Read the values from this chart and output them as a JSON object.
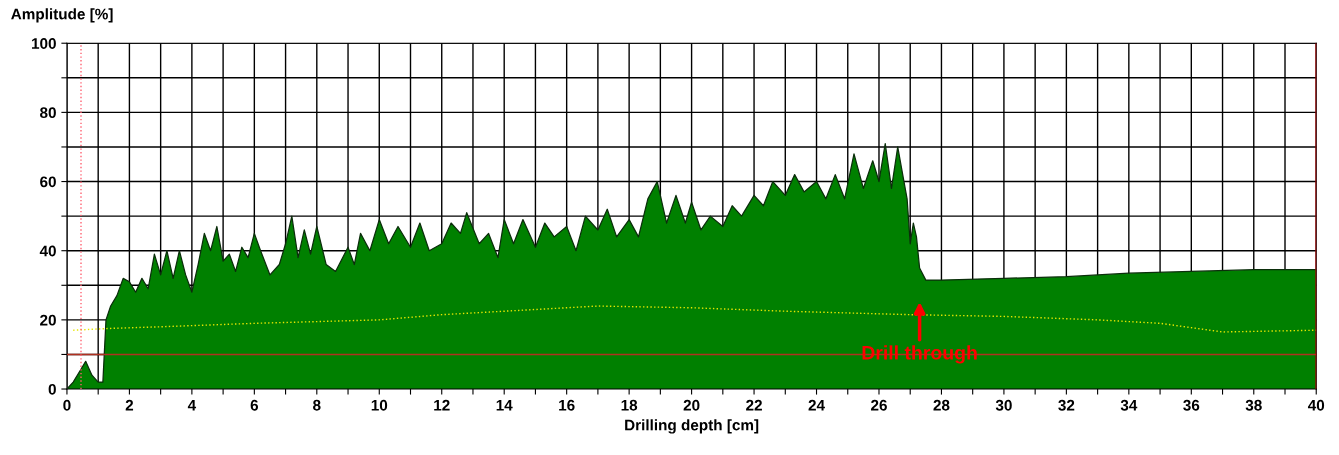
{
  "chart_data": {
    "type": "area",
    "ylabel": "Amplitude [%]",
    "xlabel": "Drilling depth [cm]",
    "xlim": [
      0,
      40
    ],
    "ylim": [
      0,
      100
    ],
    "xticks": [
      0,
      {
        "value": 1,
        "label": null
      },
      2,
      {
        "value": 3,
        "label": null
      },
      4,
      {
        "value": 5,
        "label": null
      },
      6,
      {
        "value": 7,
        "label": null
      },
      8,
      {
        "value": 9,
        "label": null
      },
      10,
      {
        "value": 11,
        "label": null
      },
      12,
      {
        "value": 13,
        "label": null
      },
      14,
      {
        "value": 15,
        "label": null
      },
      16,
      {
        "value": 17,
        "label": null
      },
      18,
      {
        "value": 19,
        "label": null
      },
      20,
      {
        "value": 21,
        "label": null
      },
      22,
      {
        "value": 23,
        "label": null
      },
      24,
      {
        "value": 25,
        "label": null
      },
      26,
      {
        "value": 27,
        "label": null
      },
      28,
      {
        "value": 29,
        "label": null
      },
      30,
      {
        "value": 31,
        "label": null
      },
      32,
      {
        "value": 33,
        "label": null
      },
      34,
      {
        "value": 35,
        "label": null
      },
      36,
      {
        "value": 37,
        "label": null
      },
      38,
      {
        "value": 39,
        "label": null
      },
      40
    ],
    "yticks": [
      0,
      {
        "value": 10,
        "label": null
      },
      20,
      {
        "value": 30,
        "label": null
      },
      40,
      {
        "value": 50,
        "label": null
      },
      60,
      {
        "value": 70,
        "label": null
      },
      80,
      {
        "value": 90,
        "label": null
      },
      100
    ],
    "grid": true,
    "legend": false,
    "series": [
      {
        "color": "#008000",
        "x": [
          0,
          0.2,
          0.4,
          0.6,
          0.8,
          1.0,
          1.15,
          1.25,
          1.4,
          1.6,
          1.8,
          2.0,
          2.2,
          2.4,
          2.6,
          2.8,
          3.0,
          3.2,
          3.4,
          3.6,
          3.8,
          4.0,
          4.2,
          4.4,
          4.6,
          4.8,
          5.0,
          5.2,
          5.4,
          5.6,
          5.8,
          6.0,
          6.2,
          6.5,
          6.8,
          7.0,
          7.2,
          7.4,
          7.6,
          7.8,
          8.0,
          8.3,
          8.6,
          9.0,
          9.2,
          9.4,
          9.7,
          10.0,
          10.3,
          10.6,
          11.0,
          11.3,
          11.6,
          12.0,
          12.3,
          12.6,
          12.8,
          13.2,
          13.5,
          13.8,
          14.0,
          14.3,
          14.6,
          15.0,
          15.3,
          15.6,
          16.0,
          16.3,
          16.6,
          17.0,
          17.3,
          17.6,
          18.0,
          18.3,
          18.6,
          18.9,
          19.2,
          19.5,
          19.8,
          20.0,
          20.3,
          20.6,
          21.0,
          21.3,
          21.6,
          22.0,
          22.3,
          22.6,
          23.0,
          23.3,
          23.6,
          24.0,
          24.3,
          24.6,
          24.9,
          25.2,
          25.5,
          25.8,
          26.0,
          26.2,
          26.4,
          26.6,
          26.8,
          26.9,
          27.0,
          27.1,
          27.2,
          27.3,
          27.5,
          28,
          30,
          32,
          34,
          36,
          38,
          40
        ],
        "values": [
          0,
          2,
          5,
          8,
          4,
          2,
          2,
          20,
          24,
          27,
          32,
          31,
          28,
          32,
          29,
          39,
          33,
          40,
          32,
          40,
          33,
          28,
          36,
          45,
          40,
          47,
          37,
          39,
          34,
          41,
          38,
          45,
          40,
          33,
          36,
          42,
          50,
          38,
          46,
          39,
          47,
          36,
          34,
          41,
          36,
          45,
          40,
          49,
          42,
          47,
          41,
          48,
          40,
          42,
          48,
          45,
          51,
          42,
          45,
          38,
          49,
          42,
          49,
          41,
          48,
          44,
          47,
          40,
          50,
          46,
          52,
          44,
          49,
          44,
          55,
          60,
          48,
          56,
          48,
          54,
          46,
          50,
          47,
          53,
          50,
          56,
          53,
          60,
          56,
          62,
          57,
          60,
          55,
          62,
          55,
          68,
          58,
          66,
          60,
          71,
          58,
          70,
          60,
          55,
          42,
          48,
          44,
          35,
          31.5,
          31.5,
          32,
          32.5,
          33.5,
          34,
          34.5,
          34.5
        ]
      },
      {
        "type": "line",
        "color": "#e6e600",
        "line_style": "dotted",
        "x": [
          0.2,
          1.3,
          3,
          6,
          10,
          12,
          15,
          17,
          20,
          23,
          27,
          30,
          33,
          35,
          37,
          40
        ],
        "values": [
          17,
          17.5,
          18,
          19,
          20,
          21.5,
          23,
          24,
          23.5,
          22.5,
          21.5,
          21,
          20,
          19,
          16.5,
          17
        ]
      }
    ],
    "ref_lines": [
      {
        "axis": "y",
        "value": 10,
        "color": "#b03020",
        "line_style": "solid"
      },
      {
        "axis": "x",
        "value": 0.45,
        "color": "#ff6070",
        "line_style": "dotted"
      },
      {
        "axis": "x",
        "value": 40,
        "color": "#e00000",
        "line_style": "solid"
      }
    ],
    "annotations": [
      "Drill through"
    ]
  }
}
